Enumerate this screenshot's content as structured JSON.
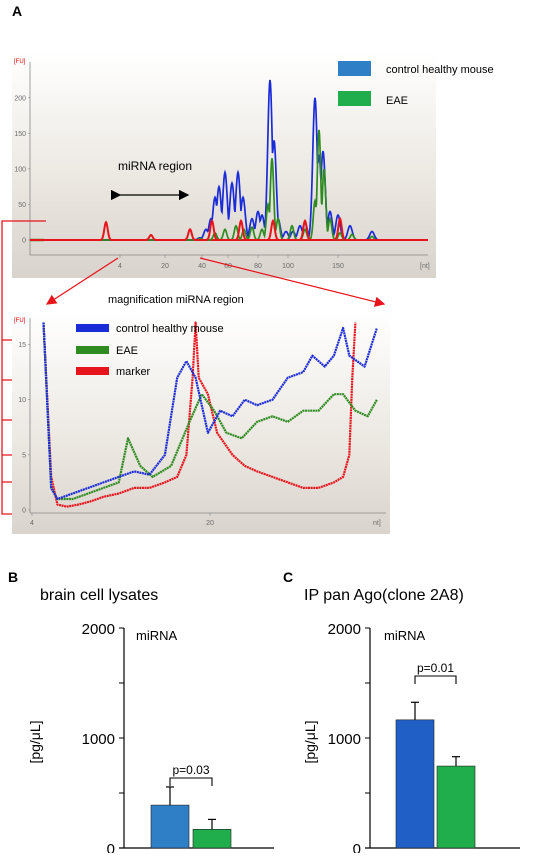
{
  "panels": {
    "a": "A",
    "b": "B",
    "c": "C"
  },
  "colors": {
    "blue": "#1a2bd8",
    "green": "#2e8b1f",
    "red": "#e8141c",
    "barBlue": "#2f7fc6",
    "barGreen": "#1fae4b"
  },
  "chart_data": [
    {
      "type": "line",
      "yunit": "[FU]",
      "xunit": "[nt]",
      "y_ticks": [
        0,
        50,
        100,
        150,
        200
      ],
      "x_ticks": [
        "4",
        "20",
        "40",
        "60",
        "80",
        "100",
        "150"
      ],
      "annotation": "miRNA region",
      "legend": [
        "control healthy mouse",
        "EAE"
      ],
      "legend_position": "top-right",
      "series": [
        {
          "name": "control healthy mouse",
          "color": "#1a2bd8",
          "peaks": [
            [
              200,
              3
            ],
            [
              206,
              15
            ],
            [
              211,
              30
            ],
            [
              215,
              60
            ],
            [
              219,
              75
            ],
            [
              225,
              95
            ],
            [
              232,
              80
            ],
            [
              238,
              95
            ],
            [
              243,
              60
            ],
            [
              252,
              30
            ],
            [
              258,
              40
            ],
            [
              262,
              35
            ],
            [
              266,
              20
            ],
            [
              270,
              225
            ],
            [
              274,
              140
            ],
            [
              278,
              30
            ],
            [
              286,
              12
            ],
            [
              293,
              12
            ],
            [
              300,
              20
            ],
            [
              305,
              25
            ],
            [
              315,
              200
            ],
            [
              319,
              120
            ],
            [
              323,
              125
            ],
            [
              330,
              40
            ],
            [
              338,
              35
            ],
            [
              350,
              20
            ],
            [
              372,
              12
            ],
            [
              382,
              0
            ]
          ]
        },
        {
          "name": "EAE",
          "color": "#2e8b1f",
          "peaks": [
            [
              200,
              2
            ],
            [
              215,
              10
            ],
            [
              225,
              15
            ],
            [
              236,
              20
            ],
            [
              244,
              15
            ],
            [
              252,
              18
            ],
            [
              262,
              15
            ],
            [
              268,
              50
            ],
            [
              272,
              115
            ],
            [
              278,
              30
            ],
            [
              292,
              20
            ],
            [
              305,
              15
            ],
            [
              315,
              55
            ],
            [
              319,
              155
            ],
            [
              324,
              100
            ],
            [
              330,
              30
            ],
            [
              340,
              10
            ],
            [
              352,
              8
            ],
            [
              372,
              5
            ],
            [
              382,
              0
            ]
          ]
        },
        {
          "name": "marker",
          "color": "#e8141c",
          "peaks": [
            [
              106,
              25
            ],
            [
              151,
              7
            ],
            [
              190,
              15
            ],
            [
              212,
              27
            ],
            [
              241,
              27
            ],
            [
              273,
              27
            ],
            [
              305,
              27
            ],
            [
              340,
              30
            ]
          ]
        }
      ]
    },
    {
      "type": "line",
      "title": "magnification miRNA region",
      "yunit": "[FU]",
      "xunit": "nt]",
      "y_ticks": [
        0,
        5,
        10,
        15
      ],
      "x_ticks": [
        "4",
        "20"
      ],
      "legend": [
        "control healthy mouse",
        "EAE",
        "marker"
      ],
      "legend_position": "top-left",
      "series": [
        {
          "name": "control healthy mouse",
          "color": "#1a2bd8",
          "points": [
            [
              0.5,
              17
            ],
            [
              3,
              2
            ],
            [
              5,
              1
            ],
            [
              10,
              1.5
            ],
            [
              20,
              2.5
            ],
            [
              30,
              3.5
            ],
            [
              35,
              3.2
            ],
            [
              40,
              5
            ],
            [
              44,
              12
            ],
            [
              47,
              13.5
            ],
            [
              50,
              12
            ],
            [
              54,
              7
            ],
            [
              58,
              9
            ],
            [
              62,
              8.5
            ],
            [
              66,
              10
            ],
            [
              70,
              9.5
            ],
            [
              75,
              10
            ],
            [
              80,
              12
            ],
            [
              85,
              12.5
            ],
            [
              88,
              14
            ],
            [
              92,
              13
            ],
            [
              95,
              14
            ],
            [
              98,
              16.5
            ],
            [
              100,
              14
            ],
            [
              105,
              13
            ],
            [
              109,
              16.5
            ]
          ]
        },
        {
          "name": "EAE",
          "color": "#2e8b1f",
          "points": [
            [
              0.5,
              17
            ],
            [
              3,
              2
            ],
            [
              5,
              1
            ],
            [
              10,
              1
            ],
            [
              15,
              1.5
            ],
            [
              20,
              2
            ],
            [
              25,
              2.5
            ],
            [
              28,
              6.5
            ],
            [
              32,
              4
            ],
            [
              36,
              3
            ],
            [
              42,
              4
            ],
            [
              48,
              8
            ],
            [
              52,
              10.5
            ],
            [
              56,
              9
            ],
            [
              60,
              7
            ],
            [
              65,
              6.5
            ],
            [
              70,
              8
            ],
            [
              75,
              8.5
            ],
            [
              80,
              8
            ],
            [
              85,
              9
            ],
            [
              90,
              9
            ],
            [
              95,
              10.5
            ],
            [
              98,
              10.5
            ],
            [
              102,
              9
            ],
            [
              106,
              8.5
            ],
            [
              109,
              10
            ]
          ]
        },
        {
          "name": "marker",
          "color": "#e8141c",
          "points": [
            [
              0.5,
              17
            ],
            [
              3,
              3
            ],
            [
              5,
              0.5
            ],
            [
              8,
              0.3
            ],
            [
              12,
              0.5
            ],
            [
              16,
              0.8
            ],
            [
              20,
              1.2
            ],
            [
              25,
              1.5
            ],
            [
              30,
              2
            ],
            [
              35,
              2
            ],
            [
              40,
              2.5
            ],
            [
              44,
              3
            ],
            [
              47,
              5
            ],
            [
              49,
              12
            ],
            [
              50,
              17
            ],
            [
              51,
              12
            ],
            [
              54,
              10.5
            ],
            [
              57,
              7
            ],
            [
              62,
              5
            ],
            [
              66,
              4
            ],
            [
              70,
              3.5
            ],
            [
              75,
              3
            ],
            [
              80,
              2.5
            ],
            [
              85,
              2
            ],
            [
              90,
              2
            ],
            [
              95,
              2.5
            ],
            [
              98,
              3
            ],
            [
              100,
              5
            ],
            [
              101,
              12
            ],
            [
              102,
              17
            ]
          ]
        }
      ]
    },
    {
      "type": "bar",
      "title": "brain cell lysates",
      "inner_label": "miRNA",
      "ylabel": "[pg/μL]",
      "ylim": [
        0,
        2000
      ],
      "y_ticks": [
        "2000",
        "1000",
        "0"
      ],
      "series": [
        {
          "values": [
            390
          ],
          "error": [
            165
          ],
          "color": "#2f7fc6"
        },
        {
          "values": [
            170
          ],
          "error": [
            90
          ],
          "color": "#1fae4b"
        }
      ],
      "annotation": "p=0.03"
    },
    {
      "type": "bar",
      "title": "IP pan Ago(clone 2A8)",
      "inner_label": "miRNA",
      "ylabel": "[pg/μL]",
      "ylim": [
        0,
        2000
      ],
      "y_ticks": [
        "2000",
        "1000",
        "0"
      ],
      "series": [
        {
          "values": [
            1165
          ],
          "error": [
            160
          ],
          "color": "#1f5fc6"
        },
        {
          "values": [
            745
          ],
          "error": [
            85
          ],
          "color": "#1fae4b"
        }
      ],
      "annotation": "p=0.01"
    }
  ]
}
